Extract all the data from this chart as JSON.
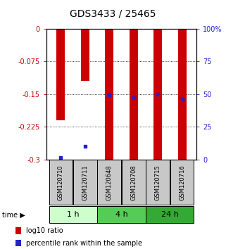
{
  "title": "GDS3433 / 25465",
  "samples": [
    "GSM120710",
    "GSM120711",
    "GSM120648",
    "GSM120708",
    "GSM120715",
    "GSM120716"
  ],
  "log10_ratio": [
    -0.21,
    -0.12,
    -0.3,
    -0.3,
    -0.3,
    -0.3
  ],
  "percentile_rank": [
    1.5,
    10.0,
    49.0,
    47.0,
    50.0,
    46.0
  ],
  "yticks_left": [
    0,
    -0.075,
    -0.15,
    -0.225,
    -0.3
  ],
  "yticks_right_labels": [
    "100%",
    "75",
    "50",
    "25",
    "0"
  ],
  "yticks_right_pct": [
    100,
    75,
    50,
    25,
    0
  ],
  "bar_color": "#cc0000",
  "dot_color": "#2222cc",
  "bar_width": 0.35,
  "time_groups": [
    {
      "label": "1 h",
      "samples": [
        0,
        1
      ],
      "color": "#ccffcc"
    },
    {
      "label": "4 h",
      "samples": [
        2,
        3
      ],
      "color": "#55cc55"
    },
    {
      "label": "24 h",
      "samples": [
        4,
        5
      ],
      "color": "#33aa33"
    }
  ],
  "legend_items": [
    {
      "label": "log10 ratio",
      "color": "#cc0000"
    },
    {
      "label": "percentile rank within the sample",
      "color": "#2222cc"
    }
  ],
  "sample_box_color": "#c8c8c8",
  "left_axis_color": "#cc0000",
  "right_axis_color": "#2222cc",
  "title_fontsize": 10,
  "tick_fontsize": 7,
  "sample_fontsize": 6,
  "time_fontsize": 8,
  "legend_fontsize": 7
}
